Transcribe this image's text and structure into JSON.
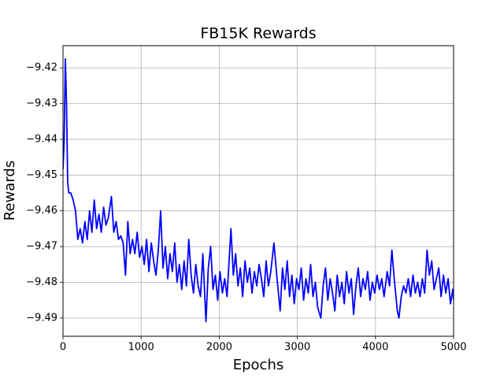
{
  "chart_data": {
    "type": "line",
    "title": "FB15K Rewards",
    "xlabel": "Epochs",
    "ylabel": "Rewards",
    "color": "#0000ff",
    "grid": true,
    "xlim": [
      0,
      5000
    ],
    "xticks": [
      0,
      1000,
      2000,
      3000,
      4000,
      5000
    ],
    "ylim": [
      -9.4951,
      -9.4138
    ],
    "yticks": [
      {
        "value": -9.42,
        "label": "−9.42"
      },
      {
        "value": -9.43,
        "label": "−9.43"
      },
      {
        "value": -9.44,
        "label": "−9.44"
      },
      {
        "value": -9.45,
        "label": "−9.45"
      },
      {
        "value": -9.46,
        "label": "−9.46"
      },
      {
        "value": -9.47,
        "label": "−9.47"
      },
      {
        "value": -9.48,
        "label": "−9.48"
      },
      {
        "value": -9.49,
        "label": "−9.49"
      }
    ],
    "x": [
      0,
      15,
      30,
      45,
      60,
      75,
      100,
      130,
      160,
      190,
      220,
      250,
      280,
      310,
      340,
      370,
      400,
      430,
      460,
      490,
      520,
      550,
      580,
      620,
      650,
      680,
      710,
      740,
      770,
      800,
      830,
      860,
      890,
      920,
      950,
      980,
      1010,
      1040,
      1070,
      1100,
      1130,
      1160,
      1190,
      1220,
      1250,
      1280,
      1310,
      1340,
      1370,
      1400,
      1430,
      1460,
      1490,
      1520,
      1550,
      1580,
      1610,
      1640,
      1670,
      1700,
      1730,
      1760,
      1790,
      1830,
      1860,
      1890,
      1920,
      1950,
      1980,
      2010,
      2040,
      2070,
      2100,
      2150,
      2180,
      2210,
      2240,
      2270,
      2300,
      2330,
      2360,
      2390,
      2420,
      2450,
      2480,
      2510,
      2540,
      2570,
      2600,
      2630,
      2660,
      2700,
      2740,
      2780,
      2810,
      2840,
      2870,
      2900,
      2930,
      2960,
      2990,
      3020,
      3050,
      3080,
      3110,
      3140,
      3170,
      3200,
      3230,
      3260,
      3300,
      3330,
      3360,
      3390,
      3420,
      3450,
      3480,
      3510,
      3540,
      3570,
      3600,
      3630,
      3660,
      3690,
      3720,
      3750,
      3780,
      3810,
      3840,
      3870,
      3900,
      3930,
      3960,
      3990,
      4020,
      4050,
      4080,
      4110,
      4150,
      4180,
      4210,
      4240,
      4280,
      4300,
      4330,
      4360,
      4390,
      4420,
      4450,
      4480,
      4510,
      4540,
      4570,
      4600,
      4630,
      4660,
      4690,
      4720,
      4750,
      4780,
      4810,
      4840,
      4870,
      4900,
      4930,
      4960,
      4990,
      5000
    ],
    "values": [
      -9.4484,
      -9.44,
      -9.4175,
      -9.43,
      -9.452,
      -9.455,
      -9.455,
      -9.457,
      -9.46,
      -9.468,
      -9.465,
      -9.469,
      -9.463,
      -9.468,
      -9.46,
      -9.466,
      -9.457,
      -9.465,
      -9.461,
      -9.466,
      -9.459,
      -9.464,
      -9.462,
      -9.456,
      -9.466,
      -9.463,
      -9.468,
      -9.467,
      -9.469,
      -9.478,
      -9.463,
      -9.472,
      -9.468,
      -9.472,
      -9.466,
      -9.473,
      -9.47,
      -9.475,
      -9.468,
      -9.477,
      -9.469,
      -9.474,
      -9.478,
      -9.471,
      -9.46,
      -9.476,
      -9.47,
      -9.479,
      -9.472,
      -9.477,
      -9.469,
      -9.48,
      -9.475,
      -9.482,
      -9.474,
      -9.481,
      -9.468,
      -9.478,
      -9.483,
      -9.475,
      -9.481,
      -9.484,
      -9.472,
      -9.491,
      -9.476,
      -9.47,
      -9.482,
      -9.478,
      -9.485,
      -9.477,
      -9.483,
      -9.479,
      -9.484,
      -9.465,
      -9.478,
      -9.472,
      -9.481,
      -9.476,
      -9.484,
      -9.474,
      -9.48,
      -9.476,
      -9.483,
      -9.477,
      -9.481,
      -9.475,
      -9.479,
      -9.484,
      -9.474,
      -9.481,
      -9.477,
      -9.469,
      -9.479,
      -9.488,
      -9.476,
      -9.482,
      -9.474,
      -9.484,
      -9.478,
      -9.486,
      -9.479,
      -9.482,
      -9.476,
      -9.485,
      -9.479,
      -9.483,
      -9.475,
      -9.484,
      -9.48,
      -9.487,
      -9.49,
      -9.481,
      -9.476,
      -9.485,
      -9.479,
      -9.483,
      -9.488,
      -9.478,
      -9.484,
      -9.48,
      -9.486,
      -9.477,
      -9.483,
      -9.479,
      -9.489,
      -9.481,
      -9.476,
      -9.484,
      -9.479,
      -9.482,
      -9.477,
      -9.485,
      -9.48,
      -9.483,
      -9.478,
      -9.482,
      -9.479,
      -9.484,
      -9.477,
      -9.481,
      -9.471,
      -9.479,
      -9.488,
      -9.49,
      -9.484,
      -9.481,
      -9.483,
      -9.479,
      -9.484,
      -9.478,
      -9.483,
      -9.48,
      -9.484,
      -9.479,
      -9.483,
      -9.471,
      -9.478,
      -9.474,
      -9.482,
      -9.479,
      -9.476,
      -9.484,
      -9.478,
      -9.483,
      -9.479,
      -9.486,
      -9.482,
      -9.485
    ]
  }
}
